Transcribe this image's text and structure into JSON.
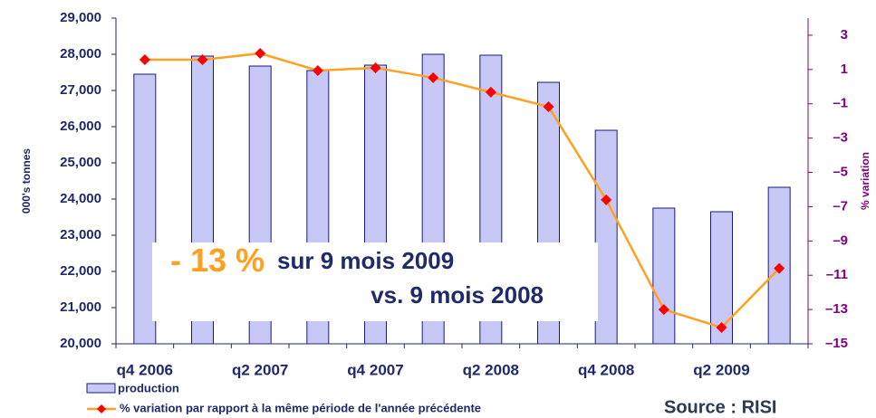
{
  "chart_data": {
    "type": "bar",
    "y_label": "000's tonnes",
    "y2_label": "% variation",
    "categories": [
      "q4 2006",
      null,
      "q2 2007",
      null,
      "q4 2007",
      null,
      "q2 2008",
      null,
      "q4 2008",
      null,
      "q2 2009",
      null
    ],
    "series": [
      {
        "name": "production",
        "type": "bar",
        "color": "#c8c8f6",
        "values": [
          27450,
          27950,
          27675,
          27550,
          27700,
          28000,
          27975,
          27225,
          25900,
          23750,
          23650,
          24325
        ]
      },
      {
        "name": "% variation par rapport à la même période de l'année précédente",
        "type": "line",
        "axis": "y2",
        "color": "#ffa020",
        "marker_color": "#ff0000",
        "values": [
          1.57,
          1.57,
          1.94,
          0.94,
          1.1,
          0.52,
          -0.32,
          -1.17,
          -6.6,
          -13.0,
          -14.05,
          -10.6
        ]
      }
    ],
    "ylim": [
      20000,
      29000
    ],
    "yticks": [
      {
        "value": 20000,
        "label": "20,000"
      },
      {
        "value": 21000,
        "label": "21,000"
      },
      {
        "value": 22000,
        "label": "22,000"
      },
      {
        "value": 23000,
        "label": "23,000"
      },
      {
        "value": 24000,
        "label": "24,000"
      },
      {
        "value": 25000,
        "label": "25,000"
      },
      {
        "value": 26000,
        "label": "26,000"
      },
      {
        "value": 27000,
        "label": "27,000"
      },
      {
        "value": 28000,
        "label": "28,000"
      },
      {
        "value": 29000,
        "label": "29,000"
      }
    ],
    "y2lim": [
      -15,
      4
    ],
    "y2ticks": [
      3,
      1,
      {
        "value": -1,
        "label": "–1"
      },
      {
        "value": -3,
        "label": "–3"
      },
      {
        "value": -5,
        "label": "–5"
      },
      {
        "value": -7,
        "label": "–7"
      },
      {
        "value": -9,
        "label": "–9"
      },
      {
        "value": -11,
        "label": "–11"
      },
      {
        "value": -13,
        "label": "–13"
      },
      {
        "value": -15,
        "label": "–15"
      }
    ],
    "annotation": {
      "highlight": "- 13 %",
      "line1": "sur 9 mois 2009",
      "line2": "vs. 9 mois 2008"
    },
    "source": "Source : RISI"
  }
}
